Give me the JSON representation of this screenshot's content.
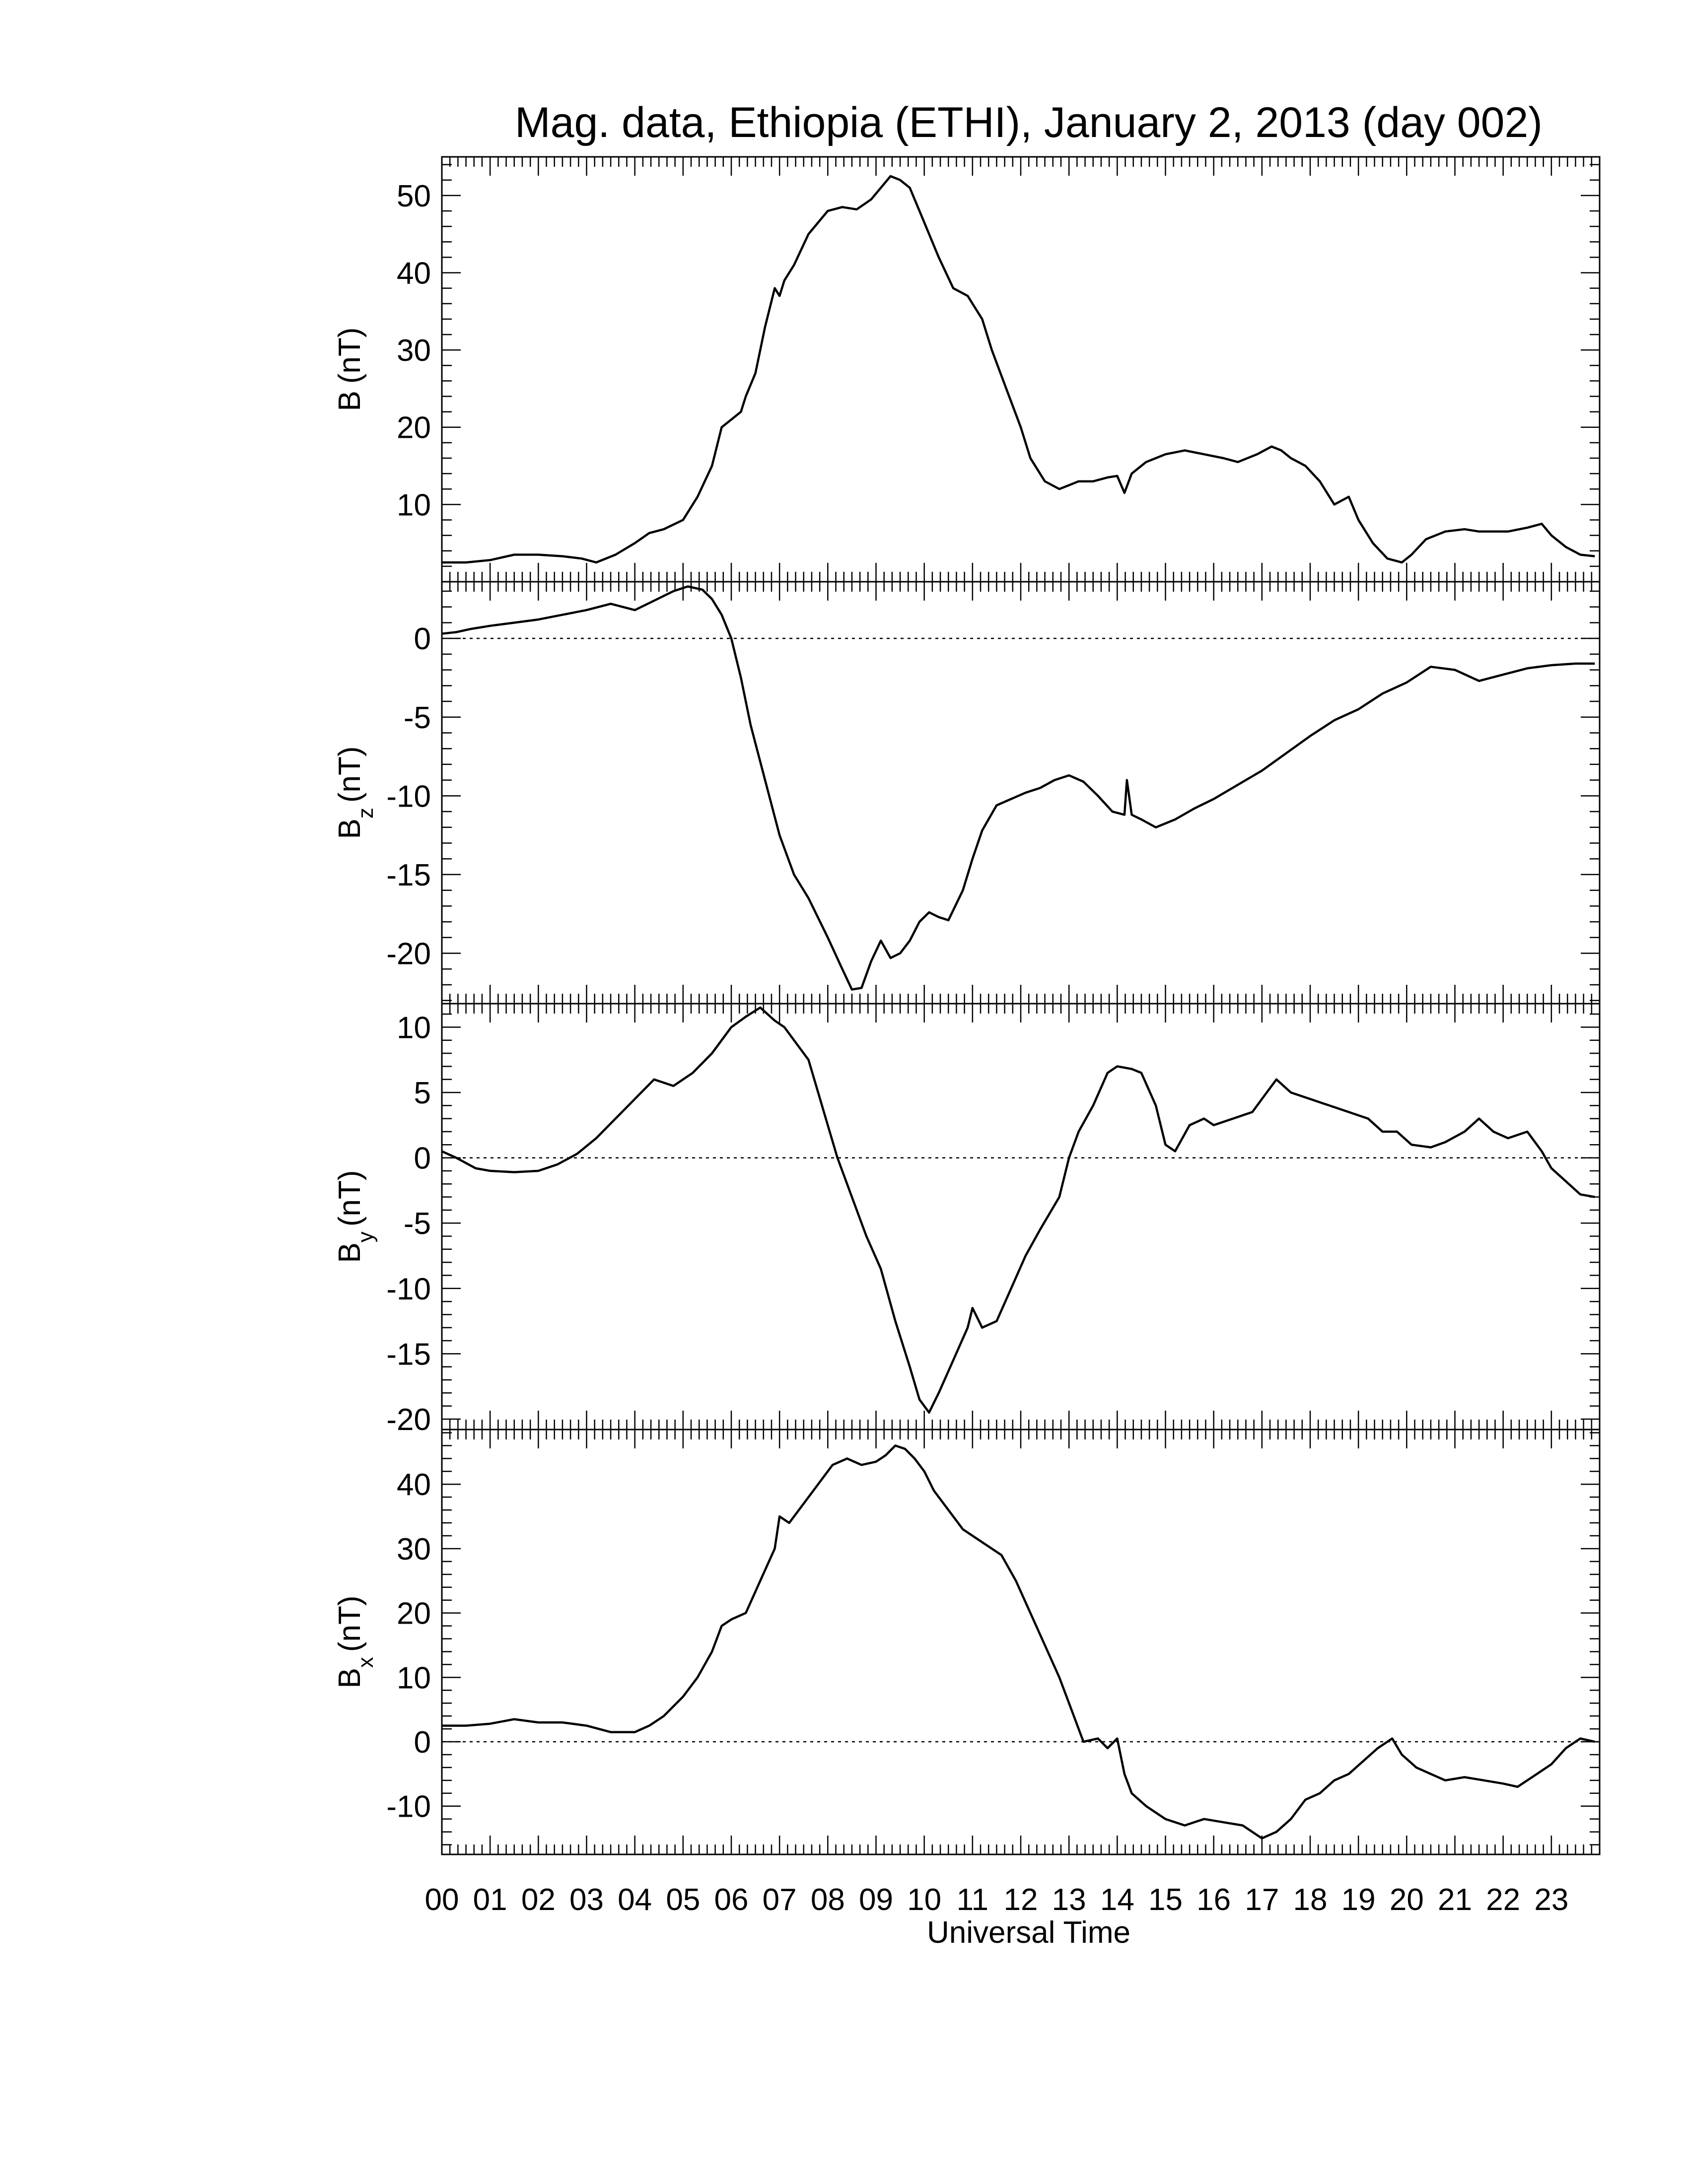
{
  "title": "Mag. data, Ethiopia (ETHI), January 2, 2013 (day 002)",
  "colors": {
    "line": "#000000",
    "background": "#ffffff",
    "zero_line": "#000000"
  },
  "chart_data": {
    "type": "line",
    "title": "Mag. data, Ethiopia (ETHI), January 2, 2013 (day 002)",
    "xlabel": "Universal Time",
    "x_ticks": [
      "00",
      "01",
      "02",
      "03",
      "04",
      "05",
      "06",
      "07",
      "08",
      "09",
      "10",
      "11",
      "12",
      "13",
      "14",
      "15",
      "16",
      "17",
      "18",
      "19",
      "20",
      "21",
      "22",
      "23"
    ],
    "xlim": [
      0,
      24
    ],
    "x_minor_per_hour": 6,
    "panels": [
      {
        "key": "B",
        "ylabel_main": "B",
        "ylabel_sub": "",
        "ylabel_unit": "(nT)",
        "ylim": [
          0,
          55
        ],
        "y_ticks": [
          10,
          20,
          30,
          40,
          50
        ],
        "zero_line": false,
        "x": [
          0,
          0.5,
          1,
          1.5,
          2,
          2.5,
          2.9,
          3.2,
          3.6,
          4,
          4.3,
          4.6,
          5,
          5.3,
          5.6,
          5.8,
          6,
          6.2,
          6.3,
          6.5,
          6.7,
          6.9,
          7,
          7.1,
          7.3,
          7.6,
          8,
          8.3,
          8.6,
          8.9,
          9.1,
          9.3,
          9.5,
          9.7,
          9.9,
          10.1,
          10.3,
          10.6,
          10.9,
          11,
          11.2,
          11.4,
          11.7,
          12,
          12.2,
          12.5,
          12.8,
          13,
          13.2,
          13.5,
          13.8,
          14,
          14.15,
          14.3,
          14.6,
          14.8,
          15,
          15.4,
          15.8,
          16.2,
          16.5,
          16.9,
          17.2,
          17.4,
          17.6,
          17.9,
          18.2,
          18.5,
          18.8,
          19,
          19.3,
          19.6,
          19.9,
          20.1,
          20.4,
          20.8,
          21.2,
          21.5,
          21.8,
          22.1,
          22.5,
          22.8,
          23,
          23.3,
          23.6,
          23.9
        ],
        "y": [
          2.5,
          2.5,
          2.8,
          3.5,
          3.5,
          3.3,
          3.0,
          2.5,
          3.5,
          5,
          6.3,
          6.8,
          8,
          11,
          15,
          20,
          21,
          22,
          24,
          27,
          33,
          38,
          37,
          39,
          41,
          45,
          48,
          48.5,
          48.2,
          49.5,
          51,
          52.5,
          52,
          51,
          48,
          45,
          42,
          38,
          37,
          36,
          34,
          30,
          25,
          20,
          16,
          13,
          12,
          12.5,
          13,
          13,
          13.5,
          13.7,
          11.5,
          14,
          15.5,
          16,
          16.5,
          17,
          16.5,
          16,
          15.5,
          16.5,
          17.5,
          17,
          16,
          15,
          13,
          10,
          11,
          8,
          5,
          3,
          2.5,
          3.5,
          5.5,
          6.5,
          6.8,
          6.5,
          6.5,
          6.5,
          7,
          7.5,
          6,
          4.5,
          3.5,
          3.3
        ]
      },
      {
        "key": "Bz",
        "ylabel_main": "B",
        "ylabel_sub": "z",
        "ylabel_unit": "(nT)",
        "ylim": [
          -23.2,
          3.6
        ],
        "y_ticks": [
          0,
          -5,
          -10,
          -15,
          -20
        ],
        "zero_line": true,
        "x": [
          0,
          0.3,
          0.6,
          1,
          1.5,
          2,
          2.5,
          3,
          3.5,
          4,
          4.4,
          4.8,
          5.1,
          5.4,
          5.6,
          5.8,
          6,
          6.2,
          6.4,
          6.7,
          7,
          7.3,
          7.6,
          8,
          8.3,
          8.5,
          8.7,
          8.9,
          9.1,
          9.3,
          9.5,
          9.7,
          9.9,
          10.1,
          10.3,
          10.5,
          10.8,
          11,
          11.2,
          11.5,
          11.8,
          12.1,
          12.4,
          12.7,
          13,
          13.3,
          13.6,
          13.9,
          14.15,
          14.2,
          14.3,
          14.5,
          14.8,
          15.2,
          15.6,
          16,
          16.5,
          17,
          17.5,
          18,
          18.5,
          19,
          19.5,
          20,
          20.5,
          21,
          21.5,
          22,
          22.5,
          23,
          23.5,
          23.9
        ],
        "y": [
          0.3,
          0.4,
          0.6,
          0.8,
          1.0,
          1.2,
          1.5,
          1.8,
          2.2,
          1.8,
          2.4,
          3.0,
          3.3,
          3.1,
          2.5,
          1.5,
          0,
          -2.5,
          -5.5,
          -9,
          -12.5,
          -15,
          -16.5,
          -19,
          -21,
          -22.3,
          -22.2,
          -20.5,
          -19.2,
          -20.3,
          -20,
          -19.2,
          -18,
          -17.4,
          -17.7,
          -17.9,
          -16,
          -14,
          -12.2,
          -10.6,
          -10.2,
          -9.8,
          -9.5,
          -9.0,
          -8.7,
          -9.1,
          -10,
          -11,
          -11.2,
          -9,
          -11.2,
          -11.5,
          -12,
          -11.5,
          -10.8,
          -10.2,
          -9.3,
          -8.4,
          -7.3,
          -6.2,
          -5.2,
          -4.5,
          -3.5,
          -2.8,
          -1.8,
          -2.0,
          -2.7,
          -2.3,
          -1.9,
          -1.7,
          -1.6,
          -1.6
        ]
      },
      {
        "key": "By",
        "ylabel_main": "B",
        "ylabel_sub": "y",
        "ylabel_unit": "(nT)",
        "ylim": [
          -20.8,
          11.8
        ],
        "y_ticks": [
          10,
          5,
          0,
          -5,
          -10,
          -15,
          -20
        ],
        "zero_line": true,
        "x": [
          0,
          0.3,
          0.7,
          1,
          1.5,
          2,
          2.4,
          2.8,
          3.2,
          3.6,
          4,
          4.4,
          4.8,
          5.2,
          5.6,
          6,
          6.3,
          6.6,
          6.9,
          7.1,
          7.3,
          7.6,
          7.8,
          8,
          8.2,
          8.5,
          8.8,
          9.1,
          9.4,
          9.7,
          9.9,
          10.1,
          10.3,
          10.6,
          10.9,
          11,
          11.2,
          11.5,
          11.8,
          12.1,
          12.4,
          12.8,
          13,
          13.2,
          13.5,
          13.8,
          14,
          14.3,
          14.5,
          14.8,
          15,
          15.2,
          15.5,
          15.8,
          16,
          16.4,
          16.8,
          17,
          17.3,
          17.6,
          18,
          18.4,
          18.8,
          19.2,
          19.5,
          19.8,
          20.1,
          20.5,
          20.8,
          21.2,
          21.5,
          21.8,
          22.1,
          22.5,
          22.8,
          23,
          23.3,
          23.6,
          23.9
        ],
        "y": [
          0.5,
          0,
          -0.8,
          -1,
          -1.1,
          -1,
          -0.5,
          0.3,
          1.5,
          3,
          4.5,
          6,
          5.5,
          6.5,
          8,
          10,
          10.8,
          11.5,
          10.5,
          10,
          9,
          7.5,
          5,
          2.5,
          0,
          -3,
          -6,
          -8.5,
          -12.5,
          -16,
          -18.5,
          -19.5,
          -18,
          -15.5,
          -13,
          -11.5,
          -13,
          -12.5,
          -10,
          -7.5,
          -5.5,
          -3,
          0,
          2,
          4,
          6.5,
          7,
          6.8,
          6.5,
          4,
          1,
          0.5,
          2.5,
          3,
          2.5,
          3,
          3.5,
          4.5,
          6,
          5,
          4.5,
          4,
          3.5,
          3,
          2,
          2,
          1,
          0.8,
          1.2,
          2,
          3,
          2,
          1.5,
          2,
          0.5,
          -0.8,
          -1.8,
          -2.8,
          -3
        ]
      },
      {
        "key": "Bx",
        "ylabel_main": "B",
        "ylabel_sub": "x",
        "ylabel_unit": "(nT)",
        "ylim": [
          -17.5,
          48.5
        ],
        "y_ticks": [
          40,
          30,
          20,
          10,
          0,
          -10
        ],
        "zero_line": true,
        "x": [
          0,
          0.5,
          1,
          1.5,
          2,
          2.5,
          3,
          3.5,
          4,
          4.3,
          4.6,
          5,
          5.3,
          5.6,
          5.8,
          6,
          6.3,
          6.6,
          6.9,
          7,
          7.2,
          7.5,
          7.8,
          8.1,
          8.4,
          8.7,
          9,
          9.2,
          9.4,
          9.6,
          9.8,
          10,
          10.2,
          10.5,
          10.8,
          11,
          11.3,
          11.6,
          11.9,
          12.2,
          12.5,
          12.8,
          13,
          13.3,
          13.6,
          13.8,
          14,
          14.15,
          14.3,
          14.6,
          15,
          15.4,
          15.8,
          16.2,
          16.6,
          17,
          17.3,
          17.6,
          17.9,
          18.2,
          18.5,
          18.8,
          19.1,
          19.4,
          19.7,
          19.9,
          20.2,
          20.5,
          20.8,
          21.2,
          21.6,
          22,
          22.3,
          22.6,
          23,
          23.3,
          23.6,
          23.9
        ],
        "y": [
          2.5,
          2.5,
          2.8,
          3.5,
          3,
          3,
          2.5,
          1.5,
          1.5,
          2.5,
          4,
          7,
          10,
          14,
          18,
          19,
          20,
          25,
          30,
          35,
          34,
          37,
          40,
          43,
          44,
          43,
          43.5,
          44.5,
          46,
          45.5,
          44,
          42,
          39,
          36,
          33,
          32,
          30.5,
          29,
          25,
          20,
          15,
          10,
          6,
          0,
          0.5,
          -1,
          0.5,
          -5,
          -8,
          -10,
          -12,
          -13,
          -12,
          -12.5,
          -13,
          -15,
          -14,
          -12,
          -9,
          -8,
          -6,
          -5,
          -3,
          -1,
          0.5,
          -2,
          -4,
          -5,
          -6,
          -5.5,
          -6,
          -6.5,
          -7,
          -5.5,
          -3.5,
          -1,
          0.5,
          0
        ]
      }
    ]
  }
}
